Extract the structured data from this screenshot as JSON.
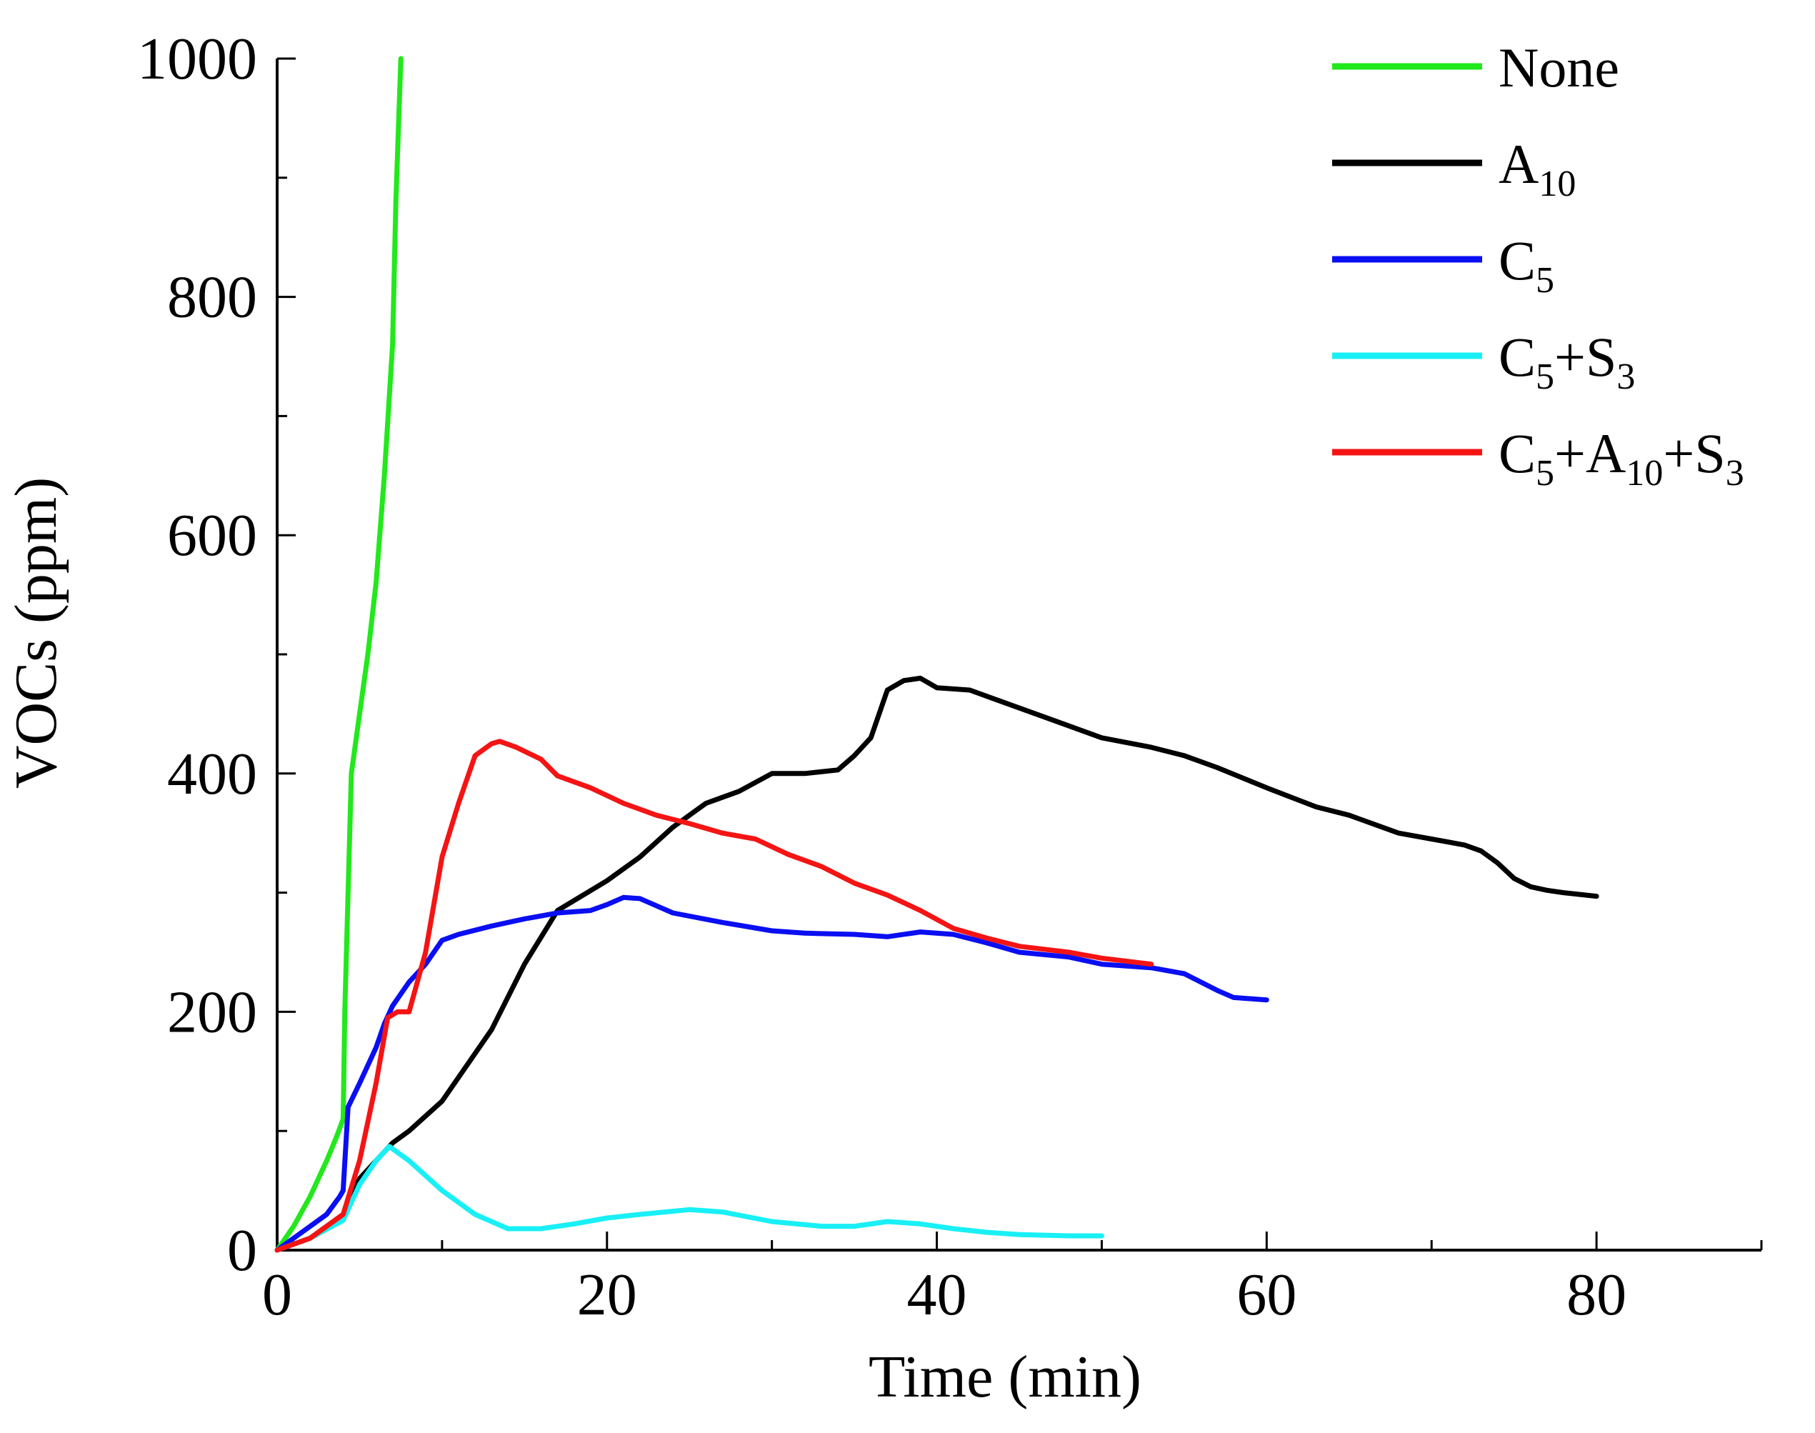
{
  "chart_data": {
    "type": "line",
    "title": "",
    "xlabel": "Time (min)",
    "ylabel": "VOCs (ppm)",
    "xlim": [
      0,
      90
    ],
    "ylim": [
      0,
      1000
    ],
    "xticks": [
      0,
      20,
      40,
      60,
      80
    ],
    "yticks": [
      0,
      200,
      400,
      600,
      800,
      1000
    ],
    "grid": false,
    "legend_position": "top-right",
    "series": [
      {
        "name": "None",
        "label_parts": [
          {
            "t": "None"
          }
        ],
        "color": "#22e81c",
        "x": [
          0,
          1,
          2,
          3,
          3.6,
          4,
          4.1,
          4.3,
          4.5,
          5,
          5.5,
          6,
          6.5,
          7,
          7.2,
          7.5
        ],
        "y": [
          0,
          20,
          45,
          75,
          95,
          110,
          200,
          300,
          400,
          450,
          500,
          560,
          650,
          760,
          880,
          1000
        ]
      },
      {
        "name": "A10",
        "label_parts": [
          {
            "t": "A"
          },
          {
            "t": "10",
            "sub": true
          }
        ],
        "color": "#000000",
        "x": [
          0,
          2,
          4,
          5,
          6,
          7,
          8,
          10,
          12,
          13,
          15,
          17,
          20,
          22,
          24,
          26,
          28,
          30,
          32,
          34,
          35,
          36,
          37,
          38,
          39,
          40,
          42,
          45,
          48,
          50,
          53,
          55,
          57,
          60,
          63,
          65,
          68,
          70,
          72,
          73,
          74,
          75,
          76,
          77,
          78,
          80
        ],
        "y": [
          0,
          10,
          30,
          60,
          75,
          90,
          100,
          125,
          165,
          185,
          240,
          285,
          310,
          330,
          355,
          375,
          385,
          400,
          400,
          403,
          415,
          430,
          470,
          478,
          480,
          472,
          470,
          455,
          440,
          430,
          422,
          415,
          405,
          388,
          372,
          365,
          350,
          345,
          340,
          335,
          325,
          312,
          305,
          302,
          300,
          297
        ]
      },
      {
        "name": "C5",
        "label_parts": [
          {
            "t": "C"
          },
          {
            "t": "5",
            "sub": true
          }
        ],
        "color": "#0a0ef2",
        "x": [
          0,
          1,
          3,
          3.8,
          4,
          4.3,
          5,
          6,
          6.5,
          7,
          8,
          9,
          10,
          11,
          13,
          15,
          17,
          19,
          20,
          21,
          22,
          24,
          27,
          30,
          32,
          35,
          37,
          39,
          41,
          43,
          45,
          48,
          50,
          53,
          55,
          57,
          58,
          60
        ],
        "y": [
          0,
          10,
          30,
          45,
          50,
          120,
          140,
          170,
          190,
          205,
          225,
          240,
          260,
          265,
          272,
          278,
          283,
          285,
          290,
          296,
          295,
          283,
          275,
          268,
          266,
          265,
          263,
          267,
          265,
          258,
          250,
          246,
          240,
          237,
          232,
          218,
          212,
          210
        ]
      },
      {
        "name": "C5+S3",
        "label_parts": [
          {
            "t": "C"
          },
          {
            "t": "5",
            "sub": true
          },
          {
            "t": "+S"
          },
          {
            "t": "3",
            "sub": true
          }
        ],
        "color": "#18f0f6",
        "x": [
          0,
          2,
          4,
          5,
          6,
          6.8,
          8,
          10,
          12,
          14,
          16,
          18,
          20,
          22,
          25,
          27,
          30,
          33,
          35,
          37,
          39,
          41,
          43,
          45,
          48,
          50
        ],
        "y": [
          0,
          10,
          25,
          55,
          75,
          87,
          75,
          50,
          30,
          18,
          18,
          22,
          27,
          30,
          34,
          32,
          24,
          20,
          20,
          24,
          22,
          18,
          15,
          13,
          12,
          12
        ]
      },
      {
        "name": "C5+A10+S3",
        "label_parts": [
          {
            "t": "C"
          },
          {
            "t": "5",
            "sub": true
          },
          {
            "t": "+A"
          },
          {
            "t": "10",
            "sub": true
          },
          {
            "t": "+S"
          },
          {
            "t": "3",
            "sub": true
          }
        ],
        "color": "#f41414",
        "x": [
          0,
          2,
          4,
          5,
          6,
          6.7,
          7.3,
          8,
          9,
          10,
          11,
          12,
          13,
          13.5,
          14.5,
          16,
          17,
          19,
          21,
          23,
          25,
          27,
          29,
          31,
          33,
          35,
          37,
          39,
          41,
          43,
          45,
          48,
          50,
          53
        ],
        "y": [
          0,
          10,
          30,
          75,
          140,
          195,
          200,
          200,
          250,
          330,
          375,
          415,
          425,
          427,
          422,
          412,
          398,
          388,
          375,
          365,
          358,
          350,
          345,
          332,
          322,
          308,
          298,
          285,
          270,
          262,
          255,
          250,
          245,
          240
        ]
      }
    ]
  }
}
